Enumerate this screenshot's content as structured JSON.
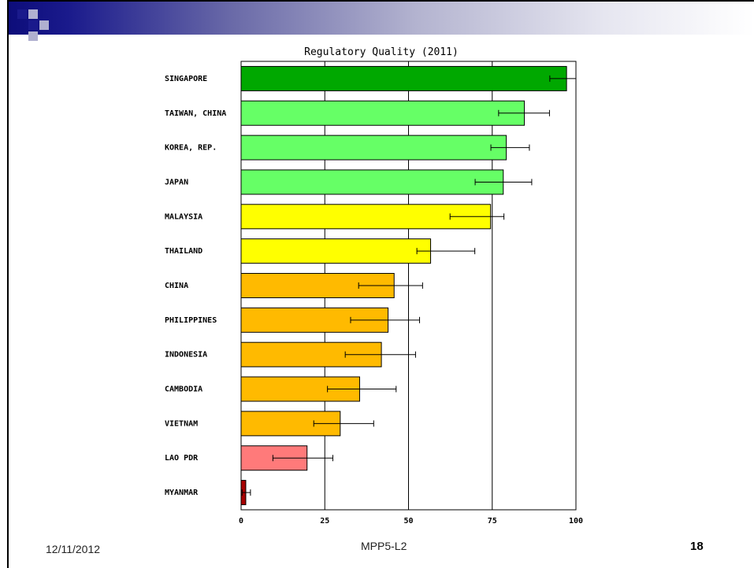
{
  "chart_data": {
    "type": "bar",
    "orientation": "horizontal",
    "title": "Regulatory Quality (2011)",
    "categories": [
      "SINGAPORE",
      "TAIWAN, CHINA",
      "KOREA, REP.",
      "JAPAN",
      "MALAYSIA",
      "THAILAND",
      "CHINA",
      "PHILIPPINES",
      "INDONESIA",
      "CAMBODIA",
      "VIETNAM",
      "LAO PDR",
      "MYANMAR"
    ],
    "values": [
      97.2,
      84.6,
      79.2,
      78.3,
      74.5,
      56.6,
      45.7,
      43.9,
      41.9,
      35.4,
      29.6,
      19.7,
      1.4
    ],
    "error_low": [
      92.2,
      76.9,
      74.6,
      69.9,
      62.4,
      52.5,
      35.1,
      32.7,
      31.1,
      25.8,
      21.7,
      9.5,
      0.3
    ],
    "error_high": [
      100,
      92.1,
      86.1,
      86.8,
      78.5,
      69.8,
      54.2,
      53.3,
      52.1,
      46.3,
      39.6,
      27.4,
      2.8
    ],
    "colors": [
      "#00a800",
      "#66ff66",
      "#66ff66",
      "#66ff66",
      "#ffff00",
      "#ffff00",
      "#ffba00",
      "#ffba00",
      "#ffba00",
      "#ffba00",
      "#ffba00",
      "#ff7a7a",
      "#a80000"
    ],
    "xlim": [
      0,
      100
    ],
    "xticks": [
      "0",
      "25",
      "50",
      "75",
      "100"
    ],
    "xlabel": "",
    "grid": "vertical"
  },
  "footer": {
    "date": "12/11/2012",
    "center": "MPP5-L2",
    "page": "18"
  }
}
